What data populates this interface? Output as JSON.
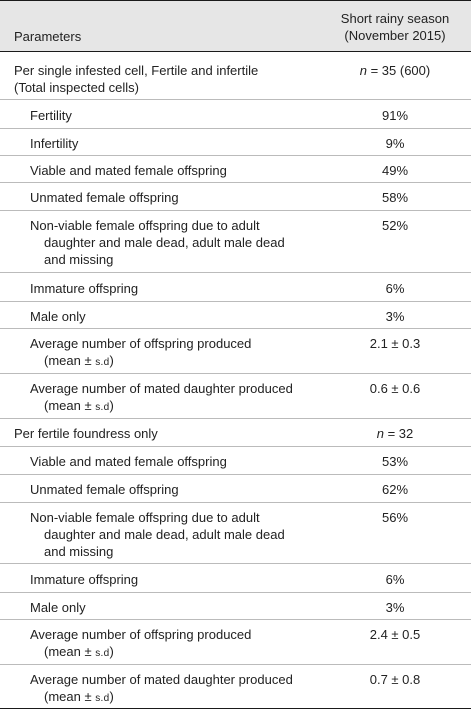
{
  "header": {
    "col1": "Parameters",
    "col2_line1": "Short rainy season",
    "col2_line2": "(November 2015)"
  },
  "groups": [
    {
      "label_line1": "Per single infested cell, Fertile and infertile",
      "label_line2": "(Total inspected cells)",
      "n_prefix": "n",
      "n_value": " = 35 (600)",
      "rows": [
        {
          "label": "Fertility",
          "value": "91%"
        },
        {
          "label": "Infertility",
          "value": "9%"
        },
        {
          "label": "Viable and mated female offspring",
          "value": "49%"
        },
        {
          "label": "Unmated female offspring",
          "value": "58%"
        },
        {
          "label_line1": "Non-viable female offspring due to adult",
          "label_line2": "daughter and male dead, adult male dead",
          "label_line3": "and missing",
          "value": "52%"
        },
        {
          "label": "Immature offspring",
          "value": "6%"
        },
        {
          "label": "Male only",
          "value": "3%"
        },
        {
          "label_line1": "Average number of offspring produced",
          "label_line2_prefix": "(mean ± ",
          "label_line2_sd": "s.d",
          "label_line2_suffix": ")",
          "value": "2.1 ± 0.3"
        },
        {
          "label_line1": "Average number of mated daughter produced",
          "label_line2_prefix": "(mean ± ",
          "label_line2_sd": "s.d",
          "label_line2_suffix": ")",
          "value": "0.6 ± 0.6"
        }
      ]
    },
    {
      "label_line1": "Per fertile foundress only",
      "n_prefix": "n",
      "n_value": " = 32",
      "rows": [
        {
          "label": "Viable and mated female offspring",
          "value": "53%"
        },
        {
          "label": "Unmated female offspring",
          "value": "62%"
        },
        {
          "label_line1": "Non-viable female offspring due to adult",
          "label_line2": "daughter and male dead, adult male dead",
          "label_line3": "and missing",
          "value": "56%"
        },
        {
          "label": "Immature offspring",
          "value": "6%"
        },
        {
          "label": "Male only",
          "value": "3%"
        },
        {
          "label_line1": "Average number of offspring produced",
          "label_line2_prefix": "(mean ± ",
          "label_line2_sd": "s.d",
          "label_line2_suffix": ")",
          "value": "2.4 ± 0.5"
        },
        {
          "label_line1": "Average number of mated daughter produced",
          "label_line2_prefix": "(mean ± ",
          "label_line2_sd": "s.d",
          "label_line2_suffix": ")",
          "value": "0.7 ± 0.8"
        }
      ]
    }
  ]
}
